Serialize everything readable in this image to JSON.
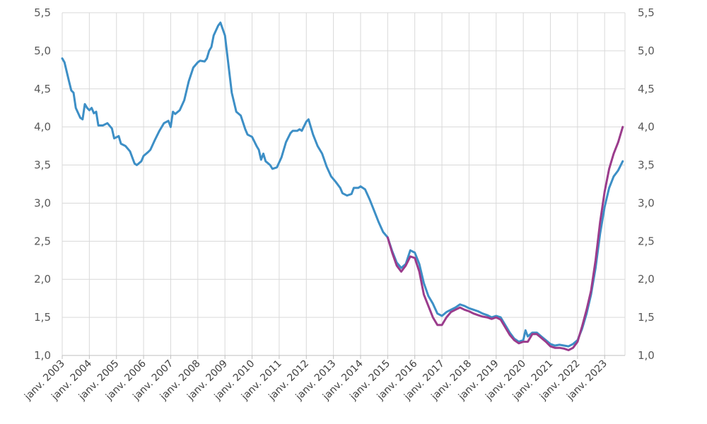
{
  "chart_data": {
    "type": "line",
    "title": "",
    "xlabel": "",
    "ylabel": "",
    "ylim": [
      1.0,
      5.5
    ],
    "y_ticks": [
      "1,0",
      "1,5",
      "2,0",
      "2,5",
      "3,0",
      "3,5",
      "4,0",
      "4,5",
      "5,0",
      "5,5"
    ],
    "y2_ticks": [
      "1,0",
      "1,5",
      "2,0",
      "2,5",
      "3,0",
      "3,5",
      "4,0",
      "4,5",
      "5,0",
      "5,5"
    ],
    "x_range": [
      "2003-01",
      "2023-10"
    ],
    "x_ticks": [
      "janv. 2003",
      "janv. 2004",
      "janv. 2005",
      "janv. 2006",
      "janv. 2007",
      "janv. 2008",
      "janv. 2009",
      "janv. 2010",
      "janv. 2011",
      "janv. 2012",
      "janv. 2013",
      "janv. 2014",
      "janv. 2015",
      "janv. 2016",
      "janv. 2017",
      "janv. 2018",
      "janv. 2019",
      "janv. 2020",
      "janv. 2021",
      "janv. 2022",
      "janv. 2023"
    ],
    "grid": true,
    "legend": "none",
    "series": [
      {
        "color": "#3d8fc6",
        "points": [
          [
            "2003-01",
            4.9
          ],
          [
            "2003-02",
            4.85
          ],
          [
            "2003-04",
            4.6
          ],
          [
            "2003-05",
            4.48
          ],
          [
            "2003-06",
            4.45
          ],
          [
            "2003-07",
            4.25
          ],
          [
            "2003-09",
            4.12
          ],
          [
            "2003-10",
            4.1
          ],
          [
            "2003-11",
            4.3
          ],
          [
            "2003-12",
            4.25
          ],
          [
            "2004-01",
            4.22
          ],
          [
            "2004-02",
            4.25
          ],
          [
            "2004-03",
            4.18
          ],
          [
            "2004-04",
            4.2
          ],
          [
            "2004-05",
            4.02
          ],
          [
            "2004-07",
            4.02
          ],
          [
            "2004-09",
            4.05
          ],
          [
            "2004-11",
            3.98
          ],
          [
            "2004-12",
            3.85
          ],
          [
            "2005-02",
            3.88
          ],
          [
            "2005-03",
            3.78
          ],
          [
            "2005-05",
            3.75
          ],
          [
            "2005-07",
            3.68
          ],
          [
            "2005-09",
            3.52
          ],
          [
            "2005-10",
            3.5
          ],
          [
            "2005-12",
            3.55
          ],
          [
            "2006-01",
            3.62
          ],
          [
            "2006-03",
            3.67
          ],
          [
            "2006-04",
            3.7
          ],
          [
            "2006-06",
            3.83
          ],
          [
            "2006-08",
            3.95
          ],
          [
            "2006-10",
            4.05
          ],
          [
            "2006-12",
            4.08
          ],
          [
            "2007-01",
            4.0
          ],
          [
            "2007-02",
            4.2
          ],
          [
            "2007-03",
            4.17
          ],
          [
            "2007-05",
            4.22
          ],
          [
            "2007-07",
            4.35
          ],
          [
            "2007-09",
            4.6
          ],
          [
            "2007-11",
            4.78
          ],
          [
            "2008-01",
            4.85
          ],
          [
            "2008-02",
            4.87
          ],
          [
            "2008-04",
            4.86
          ],
          [
            "2008-05",
            4.9
          ],
          [
            "2008-06",
            5.0
          ],
          [
            "2008-07",
            5.05
          ],
          [
            "2008-08",
            5.2
          ],
          [
            "2008-10",
            5.33
          ],
          [
            "2008-11",
            5.37
          ],
          [
            "2009-01",
            5.2
          ],
          [
            "2009-02",
            4.95
          ],
          [
            "2009-04",
            4.45
          ],
          [
            "2009-06",
            4.2
          ],
          [
            "2009-08",
            4.15
          ],
          [
            "2009-10",
            3.97
          ],
          [
            "2009-11",
            3.9
          ],
          [
            "2010-01",
            3.87
          ],
          [
            "2010-03",
            3.75
          ],
          [
            "2010-04",
            3.7
          ],
          [
            "2010-05",
            3.57
          ],
          [
            "2010-06",
            3.65
          ],
          [
            "2010-07",
            3.55
          ],
          [
            "2010-09",
            3.5
          ],
          [
            "2010-10",
            3.45
          ],
          [
            "2010-12",
            3.47
          ],
          [
            "2011-02",
            3.6
          ],
          [
            "2011-04",
            3.8
          ],
          [
            "2011-06",
            3.92
          ],
          [
            "2011-07",
            3.95
          ],
          [
            "2011-09",
            3.95
          ],
          [
            "2011-10",
            3.97
          ],
          [
            "2011-11",
            3.95
          ],
          [
            "2012-01",
            4.07
          ],
          [
            "2012-02",
            4.1
          ],
          [
            "2012-04",
            3.9
          ],
          [
            "2012-06",
            3.75
          ],
          [
            "2012-08",
            3.65
          ],
          [
            "2012-10",
            3.48
          ],
          [
            "2012-12",
            3.35
          ],
          [
            "2013-02",
            3.28
          ],
          [
            "2013-04",
            3.2
          ],
          [
            "2013-05",
            3.13
          ],
          [
            "2013-07",
            3.1
          ],
          [
            "2013-09",
            3.12
          ],
          [
            "2013-10",
            3.2
          ],
          [
            "2013-12",
            3.2
          ],
          [
            "2014-01",
            3.22
          ],
          [
            "2014-03",
            3.18
          ],
          [
            "2014-05",
            3.05
          ],
          [
            "2014-07",
            2.9
          ],
          [
            "2014-09",
            2.75
          ],
          [
            "2014-11",
            2.62
          ],
          [
            "2015-01",
            2.55
          ],
          [
            "2015-03",
            2.37
          ],
          [
            "2015-05",
            2.22
          ],
          [
            "2015-07",
            2.15
          ],
          [
            "2015-09",
            2.2
          ],
          [
            "2015-11",
            2.38
          ],
          [
            "2016-01",
            2.35
          ],
          [
            "2016-03",
            2.2
          ],
          [
            "2016-05",
            1.95
          ],
          [
            "2016-07",
            1.78
          ],
          [
            "2016-09",
            1.68
          ],
          [
            "2016-11",
            1.55
          ],
          [
            "2017-01",
            1.52
          ],
          [
            "2017-03",
            1.57
          ],
          [
            "2017-05",
            1.6
          ],
          [
            "2017-07",
            1.63
          ],
          [
            "2017-09",
            1.67
          ],
          [
            "2017-11",
            1.65
          ],
          [
            "2018-01",
            1.62
          ],
          [
            "2018-03",
            1.6
          ],
          [
            "2018-05",
            1.58
          ],
          [
            "2018-07",
            1.55
          ],
          [
            "2018-09",
            1.53
          ],
          [
            "2018-11",
            1.5
          ],
          [
            "2019-01",
            1.52
          ],
          [
            "2019-03",
            1.5
          ],
          [
            "2019-05",
            1.4
          ],
          [
            "2019-07",
            1.3
          ],
          [
            "2019-09",
            1.22
          ],
          [
            "2019-11",
            1.18
          ],
          [
            "2020-01",
            1.2
          ],
          [
            "2020-02",
            1.33
          ],
          [
            "2020-03",
            1.25
          ],
          [
            "2020-05",
            1.3
          ],
          [
            "2020-07",
            1.3
          ],
          [
            "2020-09",
            1.25
          ],
          [
            "2020-11",
            1.2
          ],
          [
            "2021-01",
            1.15
          ],
          [
            "2021-03",
            1.13
          ],
          [
            "2021-05",
            1.14
          ],
          [
            "2021-07",
            1.13
          ],
          [
            "2021-09",
            1.12
          ],
          [
            "2021-11",
            1.15
          ],
          [
            "2022-01",
            1.2
          ],
          [
            "2022-03",
            1.35
          ],
          [
            "2022-05",
            1.55
          ],
          [
            "2022-07",
            1.8
          ],
          [
            "2022-09",
            2.15
          ],
          [
            "2022-11",
            2.6
          ],
          [
            "2023-01",
            2.95
          ],
          [
            "2023-03",
            3.2
          ],
          [
            "2023-05",
            3.35
          ],
          [
            "2023-07",
            3.43
          ],
          [
            "2023-09",
            3.55
          ]
        ]
      },
      {
        "color": "#9b3c8c",
        "points": [
          [
            "2015-01",
            2.55
          ],
          [
            "2015-03",
            2.35
          ],
          [
            "2015-05",
            2.18
          ],
          [
            "2015-07",
            2.1
          ],
          [
            "2015-09",
            2.18
          ],
          [
            "2015-11",
            2.3
          ],
          [
            "2016-01",
            2.28
          ],
          [
            "2016-03",
            2.1
          ],
          [
            "2016-05",
            1.8
          ],
          [
            "2016-07",
            1.65
          ],
          [
            "2016-09",
            1.5
          ],
          [
            "2016-11",
            1.4
          ],
          [
            "2017-01",
            1.4
          ],
          [
            "2017-03",
            1.5
          ],
          [
            "2017-05",
            1.57
          ],
          [
            "2017-07",
            1.6
          ],
          [
            "2017-09",
            1.63
          ],
          [
            "2017-11",
            1.6
          ],
          [
            "2018-01",
            1.58
          ],
          [
            "2018-03",
            1.55
          ],
          [
            "2018-05",
            1.53
          ],
          [
            "2018-07",
            1.51
          ],
          [
            "2018-09",
            1.5
          ],
          [
            "2018-11",
            1.48
          ],
          [
            "2019-01",
            1.5
          ],
          [
            "2019-03",
            1.47
          ],
          [
            "2019-05",
            1.37
          ],
          [
            "2019-07",
            1.27
          ],
          [
            "2019-09",
            1.2
          ],
          [
            "2019-11",
            1.16
          ],
          [
            "2020-01",
            1.18
          ],
          [
            "2020-03",
            1.18
          ],
          [
            "2020-05",
            1.28
          ],
          [
            "2020-07",
            1.28
          ],
          [
            "2020-09",
            1.23
          ],
          [
            "2020-11",
            1.18
          ],
          [
            "2021-01",
            1.12
          ],
          [
            "2021-03",
            1.1
          ],
          [
            "2021-05",
            1.1
          ],
          [
            "2021-07",
            1.09
          ],
          [
            "2021-09",
            1.07
          ],
          [
            "2021-11",
            1.1
          ],
          [
            "2022-01",
            1.18
          ],
          [
            "2022-03",
            1.38
          ],
          [
            "2022-05",
            1.6
          ],
          [
            "2022-07",
            1.85
          ],
          [
            "2022-09",
            2.25
          ],
          [
            "2022-11",
            2.75
          ],
          [
            "2023-01",
            3.15
          ],
          [
            "2023-03",
            3.45
          ],
          [
            "2023-05",
            3.65
          ],
          [
            "2023-07",
            3.8
          ],
          [
            "2023-09",
            4.0
          ]
        ]
      }
    ]
  }
}
